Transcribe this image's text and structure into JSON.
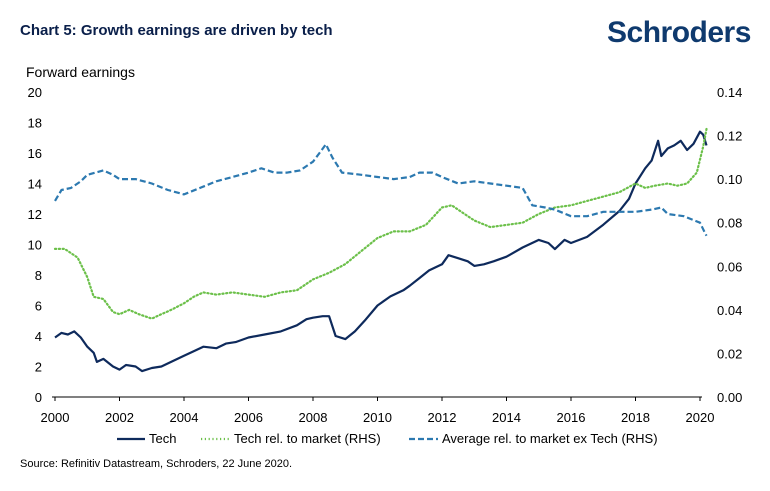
{
  "header": {
    "title": "Chart 5: Growth earnings are driven by tech",
    "logo_text": "Schroders"
  },
  "footer": {
    "source": "Source: Refinitiv Datastream, Schroders, 22 June 2020."
  },
  "colors": {
    "tech": "#0e2a5c",
    "tech_rel": "#6cc04a",
    "avg_rel": "#2c79b0"
  },
  "chart_data": {
    "type": "line",
    "title": "Chart 5: Growth earnings are driven by tech",
    "ylabel": "Forward earnings",
    "xlabel": "",
    "xlim": [
      2000,
      2020
    ],
    "ylim": [
      0,
      20
    ],
    "y2lim": [
      0.0,
      0.14
    ],
    "x_ticks": [
      "2000",
      "2002",
      "2004",
      "2006",
      "2008",
      "2010",
      "2012",
      "2014",
      "2016",
      "2018",
      "2020"
    ],
    "y_ticks": [
      "0",
      "2",
      "4",
      "6",
      "8",
      "10",
      "12",
      "14",
      "16",
      "18",
      "20"
    ],
    "y2_ticks": [
      "0.00",
      "0.02",
      "0.04",
      "0.06",
      "0.08",
      "0.10",
      "0.12",
      "0.14"
    ],
    "grid": false,
    "legend": "bottom",
    "series": [
      {
        "name": "Tech",
        "axis": "left",
        "style": "solid",
        "points": [
          [
            2000.0,
            3.9
          ],
          [
            2000.2,
            4.2
          ],
          [
            2000.4,
            4.1
          ],
          [
            2000.6,
            4.3
          ],
          [
            2000.8,
            3.9
          ],
          [
            2001.0,
            3.3
          ],
          [
            2001.2,
            2.9
          ],
          [
            2001.3,
            2.3
          ],
          [
            2001.5,
            2.5
          ],
          [
            2001.8,
            2.0
          ],
          [
            2002.0,
            1.8
          ],
          [
            2002.2,
            2.1
          ],
          [
            2002.5,
            2.0
          ],
          [
            2002.7,
            1.7
          ],
          [
            2003.0,
            1.9
          ],
          [
            2003.3,
            2.0
          ],
          [
            2003.6,
            2.3
          ],
          [
            2004.0,
            2.7
          ],
          [
            2004.3,
            3.0
          ],
          [
            2004.6,
            3.3
          ],
          [
            2005.0,
            3.2
          ],
          [
            2005.3,
            3.5
          ],
          [
            2005.6,
            3.6
          ],
          [
            2006.0,
            3.9
          ],
          [
            2006.5,
            4.1
          ],
          [
            2007.0,
            4.3
          ],
          [
            2007.5,
            4.7
          ],
          [
            2007.8,
            5.1
          ],
          [
            2008.0,
            5.2
          ],
          [
            2008.3,
            5.3
          ],
          [
            2008.5,
            5.3
          ],
          [
            2008.7,
            4.0
          ],
          [
            2009.0,
            3.8
          ],
          [
            2009.3,
            4.3
          ],
          [
            2009.6,
            5.0
          ],
          [
            2010.0,
            6.0
          ],
          [
            2010.4,
            6.6
          ],
          [
            2010.8,
            7.0
          ],
          [
            2011.0,
            7.3
          ],
          [
            2011.3,
            7.8
          ],
          [
            2011.6,
            8.3
          ],
          [
            2012.0,
            8.7
          ],
          [
            2012.2,
            9.3
          ],
          [
            2012.5,
            9.1
          ],
          [
            2012.8,
            8.9
          ],
          [
            2013.0,
            8.6
          ],
          [
            2013.3,
            8.7
          ],
          [
            2013.6,
            8.9
          ],
          [
            2014.0,
            9.2
          ],
          [
            2014.5,
            9.8
          ],
          [
            2015.0,
            10.3
          ],
          [
            2015.3,
            10.1
          ],
          [
            2015.5,
            9.7
          ],
          [
            2015.8,
            10.3
          ],
          [
            2016.0,
            10.1
          ],
          [
            2016.5,
            10.5
          ],
          [
            2017.0,
            11.3
          ],
          [
            2017.5,
            12.2
          ],
          [
            2017.8,
            13.0
          ],
          [
            2018.0,
            14.0
          ],
          [
            2018.3,
            15.0
          ],
          [
            2018.5,
            15.5
          ],
          [
            2018.7,
            16.8
          ],
          [
            2018.8,
            15.8
          ],
          [
            2019.0,
            16.3
          ],
          [
            2019.2,
            16.5
          ],
          [
            2019.4,
            16.8
          ],
          [
            2019.6,
            16.2
          ],
          [
            2019.8,
            16.6
          ],
          [
            2020.0,
            17.4
          ],
          [
            2020.1,
            17.2
          ],
          [
            2020.2,
            16.5
          ]
        ]
      },
      {
        "name": "Tech rel. to market (RHS)",
        "axis": "right",
        "style": "dotted",
        "points": [
          [
            2000.0,
            0.068
          ],
          [
            2000.3,
            0.068
          ],
          [
            2000.7,
            0.064
          ],
          [
            2001.0,
            0.055
          ],
          [
            2001.2,
            0.046
          ],
          [
            2001.5,
            0.045
          ],
          [
            2001.8,
            0.039
          ],
          [
            2002.0,
            0.038
          ],
          [
            2002.3,
            0.04
          ],
          [
            2002.6,
            0.038
          ],
          [
            2003.0,
            0.036
          ],
          [
            2003.3,
            0.038
          ],
          [
            2003.6,
            0.04
          ],
          [
            2004.0,
            0.043
          ],
          [
            2004.3,
            0.046
          ],
          [
            2004.6,
            0.048
          ],
          [
            2005.0,
            0.047
          ],
          [
            2005.5,
            0.048
          ],
          [
            2006.0,
            0.047
          ],
          [
            2006.5,
            0.046
          ],
          [
            2007.0,
            0.048
          ],
          [
            2007.5,
            0.049
          ],
          [
            2008.0,
            0.054
          ],
          [
            2008.5,
            0.057
          ],
          [
            2009.0,
            0.061
          ],
          [
            2009.5,
            0.067
          ],
          [
            2010.0,
            0.073
          ],
          [
            2010.5,
            0.076
          ],
          [
            2011.0,
            0.076
          ],
          [
            2011.5,
            0.079
          ],
          [
            2012.0,
            0.087
          ],
          [
            2012.3,
            0.088
          ],
          [
            2012.6,
            0.085
          ],
          [
            2013.0,
            0.081
          ],
          [
            2013.5,
            0.078
          ],
          [
            2014.0,
            0.079
          ],
          [
            2014.5,
            0.08
          ],
          [
            2015.0,
            0.084
          ],
          [
            2015.5,
            0.087
          ],
          [
            2016.0,
            0.088
          ],
          [
            2016.5,
            0.09
          ],
          [
            2017.0,
            0.092
          ],
          [
            2017.5,
            0.094
          ],
          [
            2018.0,
            0.098
          ],
          [
            2018.3,
            0.096
          ],
          [
            2018.6,
            0.097
          ],
          [
            2019.0,
            0.098
          ],
          [
            2019.3,
            0.097
          ],
          [
            2019.6,
            0.098
          ],
          [
            2019.9,
            0.103
          ],
          [
            2020.1,
            0.115
          ],
          [
            2020.2,
            0.123
          ]
        ]
      },
      {
        "name": "Average rel. to market ex Tech (RHS)",
        "axis": "right",
        "style": "dashed",
        "points": [
          [
            2000.0,
            0.09
          ],
          [
            2000.2,
            0.095
          ],
          [
            2000.5,
            0.096
          ],
          [
            2000.8,
            0.099
          ],
          [
            2001.0,
            0.102
          ],
          [
            2001.5,
            0.104
          ],
          [
            2001.8,
            0.102
          ],
          [
            2002.0,
            0.1
          ],
          [
            2002.5,
            0.1
          ],
          [
            2003.0,
            0.098
          ],
          [
            2003.5,
            0.095
          ],
          [
            2004.0,
            0.093
          ],
          [
            2004.5,
            0.096
          ],
          [
            2005.0,
            0.099
          ],
          [
            2005.5,
            0.101
          ],
          [
            2006.0,
            0.103
          ],
          [
            2006.4,
            0.105
          ],
          [
            2006.8,
            0.103
          ],
          [
            2007.2,
            0.103
          ],
          [
            2007.6,
            0.104
          ],
          [
            2008.0,
            0.108
          ],
          [
            2008.2,
            0.112
          ],
          [
            2008.4,
            0.116
          ],
          [
            2008.6,
            0.11
          ],
          [
            2008.9,
            0.103
          ],
          [
            2009.5,
            0.102
          ],
          [
            2010.0,
            0.101
          ],
          [
            2010.5,
            0.1
          ],
          [
            2011.0,
            0.101
          ],
          [
            2011.3,
            0.103
          ],
          [
            2011.7,
            0.103
          ],
          [
            2012.0,
            0.101
          ],
          [
            2012.5,
            0.098
          ],
          [
            2013.0,
            0.099
          ],
          [
            2013.5,
            0.098
          ],
          [
            2014.0,
            0.097
          ],
          [
            2014.5,
            0.096
          ],
          [
            2014.8,
            0.088
          ],
          [
            2015.2,
            0.087
          ],
          [
            2015.5,
            0.086
          ],
          [
            2016.0,
            0.083
          ],
          [
            2016.5,
            0.083
          ],
          [
            2017.0,
            0.085
          ],
          [
            2017.5,
            0.085
          ],
          [
            2018.0,
            0.085
          ],
          [
            2018.5,
            0.086
          ],
          [
            2018.8,
            0.087
          ],
          [
            2019.0,
            0.084
          ],
          [
            2019.5,
            0.083
          ],
          [
            2020.0,
            0.08
          ],
          [
            2020.1,
            0.077
          ],
          [
            2020.2,
            0.074
          ]
        ]
      }
    ]
  }
}
